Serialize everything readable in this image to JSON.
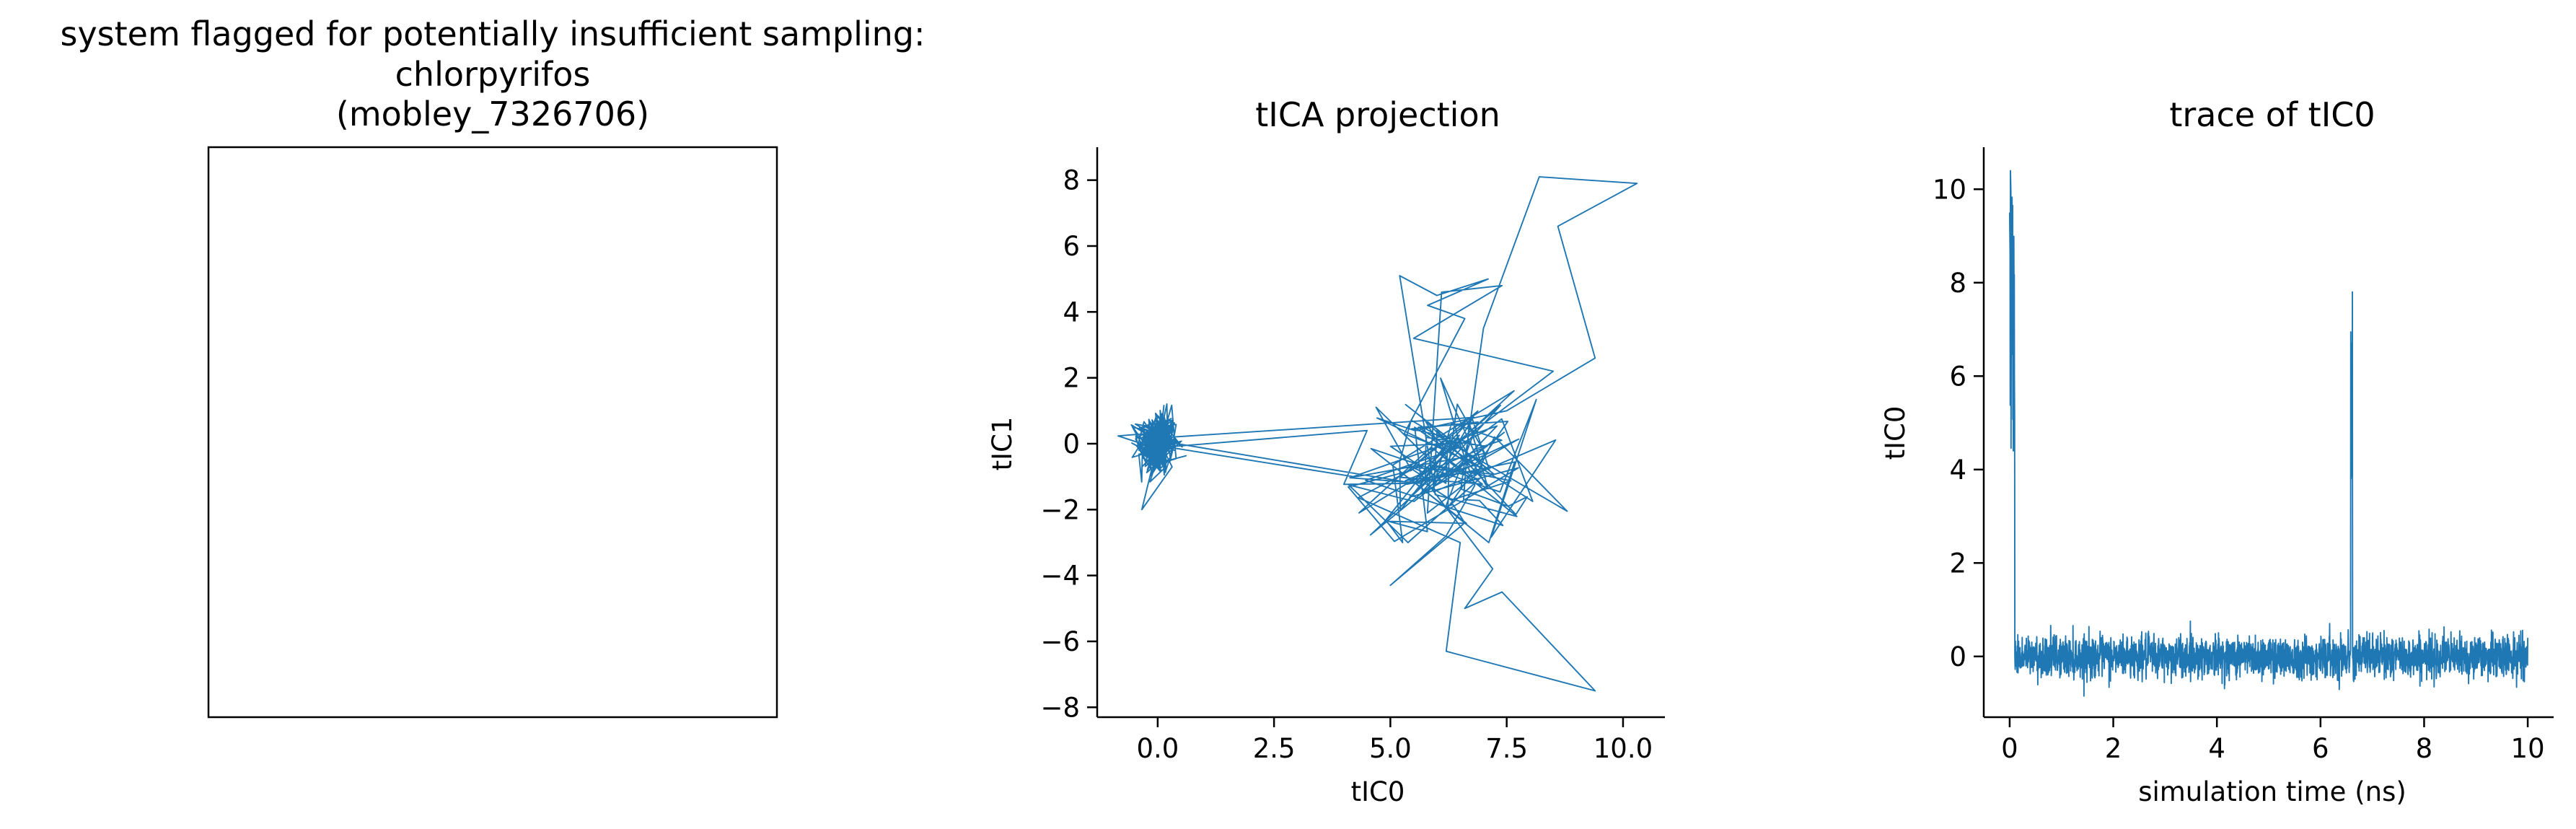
{
  "figure": {
    "line_color": "#1f77b4"
  },
  "chart_data": [
    {
      "type": "other",
      "title_lines": [
        "system flagged for potentially insufficient sampling:",
        "chlorpyrifos",
        "(mobley_7326706)"
      ],
      "content": "empty framed panel"
    },
    {
      "type": "line",
      "title": "tICA projection",
      "xlabel": "tIC0",
      "ylabel": "tIC1",
      "xlim": [
        -1.3,
        10.9
      ],
      "ylim": [
        -8.3,
        9.0
      ],
      "xticks": [
        0.0,
        2.5,
        5.0,
        7.5,
        10.0
      ],
      "xtick_labels": [
        "0.0",
        "2.5",
        "5.0",
        "7.5",
        "10.0"
      ],
      "yticks": [
        -8,
        -6,
        -4,
        -2,
        0,
        2,
        4,
        6,
        8
      ],
      "ytick_labels": [
        "−8",
        "−6",
        "−4",
        "−2",
        "0",
        "2",
        "4",
        "6",
        "8"
      ],
      "grid": false,
      "series": [
        {
          "values": "trajectory in (tIC0, tIC1) space: dense cluster near (0, 0) spanning roughly x -0.8..0.8, y -2..2; long jumps to a second region x 4..9, y -3..2.5; excursions up to (8.2, 8.1), (10.3, 7.9), (9.4, 2.6), (5.2, 5.1) and down to (6.2, -6.3), (9.4, -7.5), (5.0, -4.3)"
        }
      ],
      "key_points": [
        [
          0.0,
          0.0
        ],
        [
          0.3,
          0.2
        ],
        [
          6.8,
          0.8
        ],
        [
          5.2,
          5.1
        ],
        [
          7.1,
          5.0
        ],
        [
          8.2,
          8.1
        ],
        [
          10.3,
          7.9
        ],
        [
          9.4,
          2.6
        ],
        [
          7.5,
          1.0
        ],
        [
          6.0,
          -2.0
        ],
        [
          6.2,
          -6.3
        ],
        [
          9.4,
          -7.5
        ],
        [
          7.2,
          -3.8
        ],
        [
          5.0,
          -4.3
        ],
        [
          6.4,
          -0.7
        ],
        [
          8.5,
          2.2
        ],
        [
          5.5,
          -1.2
        ],
        [
          0.0,
          0.1
        ]
      ]
    },
    {
      "type": "line",
      "title": "trace of tIC0",
      "xlabel": "simulation time (ns)",
      "ylabel": "tIC0",
      "xlim": [
        -0.5,
        10.5
      ],
      "ylim": [
        -1.3,
        10.9
      ],
      "xticks": [
        0,
        2,
        4,
        6,
        8,
        10
      ],
      "xtick_labels": [
        "0",
        "2",
        "4",
        "6",
        "8",
        "10"
      ],
      "yticks": [
        0,
        2,
        4,
        6,
        8,
        10
      ],
      "ytick_labels": [
        "0",
        "2",
        "4",
        "6",
        "8",
        "10"
      ],
      "grid": false,
      "series": [
        {
          "values": "tIC0 vs time: high (about 4.5–10.4) for t 0–0.1 ns, then baseline about 0 with noise -0.9..1.0 up to 10 ns; spike to about 8 near t = 6.6 ns"
        }
      ],
      "features": {
        "initial_high_segment": {
          "t_range": [
            0.0,
            0.1
          ],
          "y_range": [
            4.4,
            10.4
          ]
        },
        "baseline": {
          "t_range": [
            0.1,
            10.0
          ],
          "mean": 0.0,
          "noise_range": [
            -0.9,
            1.0
          ]
        },
        "spike": {
          "t": 6.6,
          "peak": 8.1,
          "base_during_spike": 3.8
        }
      }
    }
  ]
}
